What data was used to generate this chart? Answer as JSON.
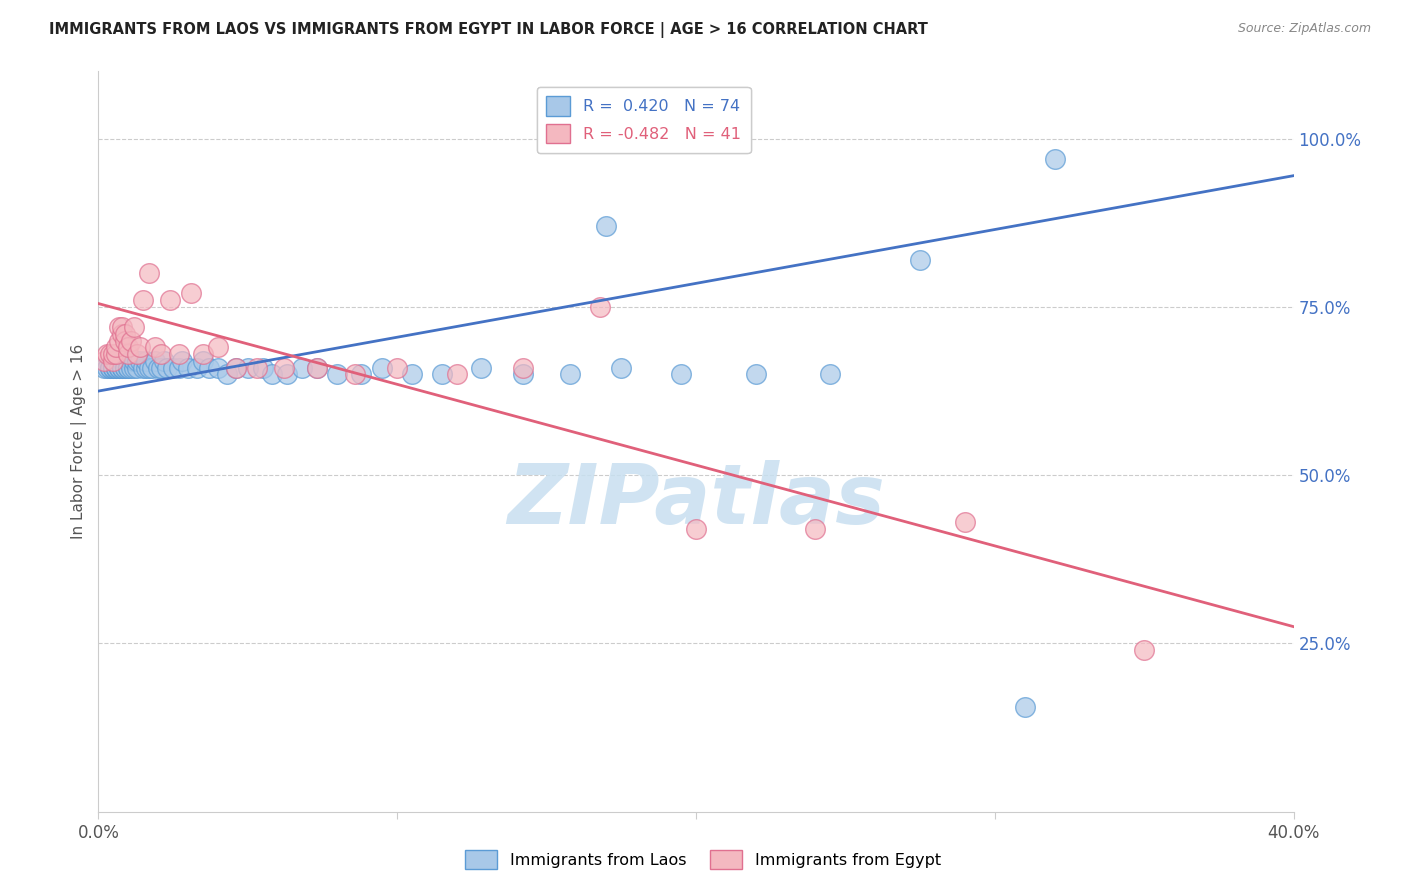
{
  "title": "IMMIGRANTS FROM LAOS VS IMMIGRANTS FROM EGYPT IN LABOR FORCE | AGE > 16 CORRELATION CHART",
  "source": "Source: ZipAtlas.com",
  "ylabel": "In Labor Force | Age > 16",
  "right_yticks": [
    0.25,
    0.5,
    0.75,
    1.0
  ],
  "right_yticklabels": [
    "25.0%",
    "50.0%",
    "75.0%",
    "100.0%"
  ],
  "xmin": 0.0,
  "xmax": 0.4,
  "ymin": 0.0,
  "ymax": 1.1,
  "laos_R": 0.42,
  "laos_N": 74,
  "egypt_R": -0.482,
  "egypt_N": 41,
  "laos_color": "#a8c8e8",
  "egypt_color": "#f4b8c0",
  "laos_edge_color": "#5b9bd5",
  "egypt_edge_color": "#e07090",
  "laos_line_color": "#4472c4",
  "egypt_line_color": "#e0607a",
  "watermark_color": "#c8dff0",
  "laos_scatter_x": [
    0.002,
    0.003,
    0.004,
    0.004,
    0.005,
    0.005,
    0.005,
    0.006,
    0.006,
    0.006,
    0.006,
    0.007,
    0.007,
    0.007,
    0.007,
    0.008,
    0.008,
    0.008,
    0.008,
    0.009,
    0.009,
    0.009,
    0.01,
    0.01,
    0.01,
    0.011,
    0.011,
    0.012,
    0.012,
    0.013,
    0.013,
    0.014,
    0.015,
    0.016,
    0.016,
    0.017,
    0.018,
    0.019,
    0.02,
    0.021,
    0.022,
    0.023,
    0.025,
    0.027,
    0.028,
    0.03,
    0.033,
    0.035,
    0.037,
    0.04,
    0.043,
    0.046,
    0.05,
    0.055,
    0.058,
    0.063,
    0.068,
    0.073,
    0.08,
    0.088,
    0.095,
    0.105,
    0.115,
    0.128,
    0.142,
    0.158,
    0.175,
    0.195,
    0.22,
    0.245,
    0.275,
    0.31,
    0.17,
    0.32
  ],
  "laos_scatter_y": [
    0.66,
    0.66,
    0.66,
    0.66,
    0.66,
    0.66,
    0.66,
    0.66,
    0.66,
    0.66,
    0.66,
    0.66,
    0.67,
    0.66,
    0.66,
    0.66,
    0.66,
    0.67,
    0.66,
    0.66,
    0.67,
    0.66,
    0.66,
    0.67,
    0.66,
    0.67,
    0.66,
    0.66,
    0.67,
    0.66,
    0.67,
    0.67,
    0.66,
    0.66,
    0.67,
    0.66,
    0.66,
    0.67,
    0.66,
    0.66,
    0.67,
    0.66,
    0.66,
    0.66,
    0.67,
    0.66,
    0.66,
    0.67,
    0.66,
    0.66,
    0.65,
    0.66,
    0.66,
    0.66,
    0.65,
    0.65,
    0.66,
    0.66,
    0.65,
    0.65,
    0.66,
    0.65,
    0.65,
    0.66,
    0.65,
    0.65,
    0.66,
    0.65,
    0.65,
    0.65,
    0.82,
    0.155,
    0.87,
    0.97
  ],
  "egypt_scatter_x": [
    0.002,
    0.003,
    0.004,
    0.005,
    0.005,
    0.006,
    0.006,
    0.007,
    0.007,
    0.008,
    0.008,
    0.009,
    0.009,
    0.01,
    0.01,
    0.011,
    0.012,
    0.013,
    0.014,
    0.015,
    0.017,
    0.019,
    0.021,
    0.024,
    0.027,
    0.031,
    0.035,
    0.04,
    0.046,
    0.053,
    0.062,
    0.073,
    0.086,
    0.1,
    0.12,
    0.142,
    0.168,
    0.2,
    0.24,
    0.29,
    0.35
  ],
  "egypt_scatter_y": [
    0.67,
    0.68,
    0.68,
    0.67,
    0.68,
    0.68,
    0.69,
    0.72,
    0.7,
    0.71,
    0.72,
    0.7,
    0.71,
    0.68,
    0.69,
    0.7,
    0.72,
    0.68,
    0.69,
    0.76,
    0.8,
    0.69,
    0.68,
    0.76,
    0.68,
    0.77,
    0.68,
    0.69,
    0.66,
    0.66,
    0.66,
    0.66,
    0.65,
    0.66,
    0.65,
    0.66,
    0.75,
    0.42,
    0.42,
    0.43,
    0.24
  ],
  "laos_line_x0": 0.0,
  "laos_line_x1": 0.4,
  "laos_line_y0": 0.625,
  "laos_line_y1": 0.945,
  "egypt_line_x0": 0.0,
  "egypt_line_x1": 0.4,
  "egypt_line_y0": 0.755,
  "egypt_line_y1": 0.275
}
